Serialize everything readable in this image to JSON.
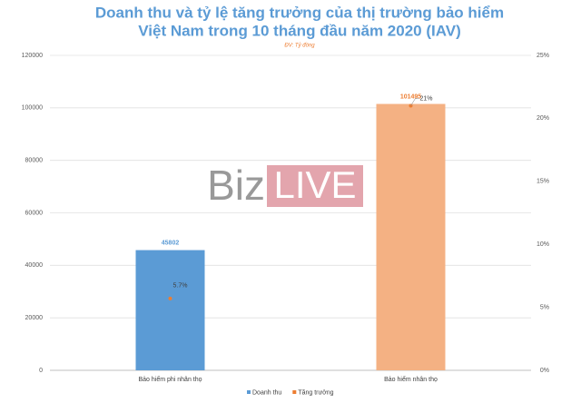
{
  "chart_data": {
    "type": "bar_scatter",
    "title": [
      "Doanh thu và tỷ lệ tăng trưởng của thị trường bảo hiểm",
      "Việt Nam trong 10 tháng đầu năm 2020 (IAV)"
    ],
    "subtitle": "ĐV: Tỷ đồng",
    "watermark": [
      "Biz",
      "LIVE"
    ],
    "categories": [
      "Bảo hiểm phi nhân thọ",
      "Bảo hiểm nhân thọ"
    ],
    "series": [
      {
        "name": "Doanh thu",
        "type": "bar",
        "colors": [
          "#5b9bd5",
          "#f4b183"
        ],
        "label_colors": [
          "#5b9bd5",
          "#ed7d31"
        ],
        "color": "#5b9bd5",
        "values": [
          45802,
          101495
        ]
      },
      {
        "name": "Tăng trưởng",
        "type": "scatter",
        "axis": "y2",
        "color": "#ed7d31",
        "values": [
          5.7,
          21
        ],
        "value_labels": [
          "5.7%",
          "21%"
        ]
      }
    ],
    "ylim": [
      0,
      120000
    ],
    "yticks": [
      0,
      20000,
      40000,
      60000,
      80000,
      100000,
      120000
    ],
    "y2lim": [
      0,
      25
    ],
    "y2ticks": [
      {
        "value": 0,
        "label": "0%"
      },
      {
        "value": 5,
        "label": "5%"
      },
      {
        "value": 10,
        "label": "10%"
      },
      {
        "value": 15,
        "label": "15%"
      },
      {
        "value": 20,
        "label": "20%"
      },
      {
        "value": 25,
        "label": "25%"
      }
    ],
    "legend": "bottom"
  }
}
